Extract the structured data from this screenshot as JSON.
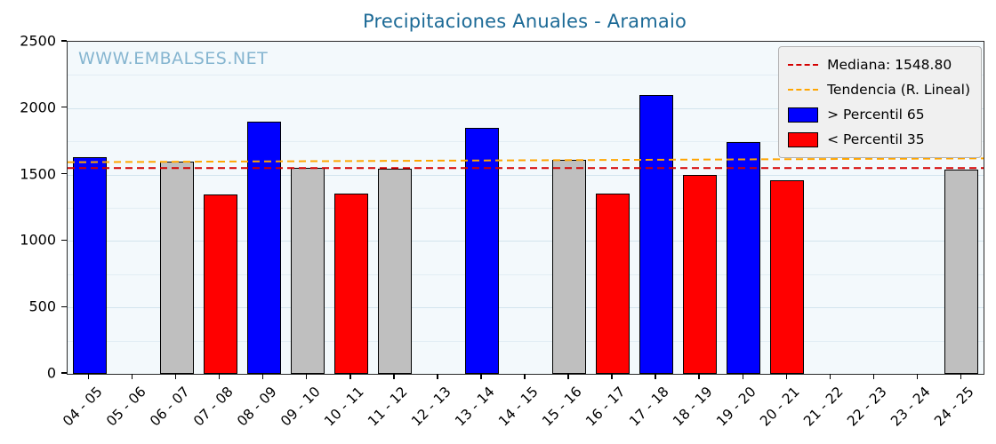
{
  "title": "Precipitaciones Anuales - Aramaio",
  "watermark": "WWW.EMBALSES.NET",
  "colors": {
    "title": "#1c6a96",
    "watermark": "#85b5d0",
    "plot_bg": "#f3f9fc",
    "grid_minor": "#e2edf4",
    "grid_major": "#d3e4ee",
    "above": "#0000ff",
    "below": "#ff0000",
    "mid": "#bfbfbf",
    "median": "#d40000",
    "trend": "#ffa500"
  },
  "legend": {
    "items": [
      {
        "type": "line",
        "color_key": "median",
        "label": "Mediana: 1548.80"
      },
      {
        "type": "line",
        "color_key": "trend",
        "label": "Tendencia (R. Lineal)"
      },
      {
        "type": "patch",
        "color_key": "above",
        "label": "> Percentil 65"
      },
      {
        "type": "patch",
        "color_key": "below",
        "label": "< Percentil 35"
      }
    ]
  },
  "chart_data": {
    "type": "bar",
    "title": "Precipitaciones Anuales - Aramaio",
    "categories": [
      "04 - 05",
      "05 - 06",
      "06 - 07",
      "07 - 08",
      "08 - 09",
      "09 - 10",
      "10 - 11",
      "11 - 12",
      "12 - 13",
      "13 - 14",
      "14 - 15",
      "15 - 16",
      "16 - 17",
      "17 - 18",
      "18 - 19",
      "19 - 20",
      "20 - 21",
      "21 - 22",
      "22 - 23",
      "23 - 24",
      "24 - 25"
    ],
    "values": [
      1630,
      null,
      1600,
      1350,
      1900,
      1550,
      1355,
      1545,
      null,
      1850,
      null,
      1610,
      1360,
      2100,
      1500,
      1745,
      1455,
      null,
      null,
      null,
      1540
    ],
    "bar_classes": [
      "above",
      null,
      "mid",
      "below",
      "above",
      "mid",
      "below",
      "mid",
      null,
      "above",
      null,
      "mid",
      "below",
      "above",
      "below",
      "above",
      "below",
      null,
      null,
      null,
      "mid"
    ],
    "median": 1548.8,
    "trend": {
      "start": 1593,
      "end": 1622
    },
    "ylim": [
      0,
      2500
    ],
    "yticks": [
      0,
      500,
      1000,
      1500,
      2000,
      2500
    ],
    "grid_step_minor": 250,
    "legend_position": "upper right",
    "xlabel": "",
    "ylabel": ""
  }
}
